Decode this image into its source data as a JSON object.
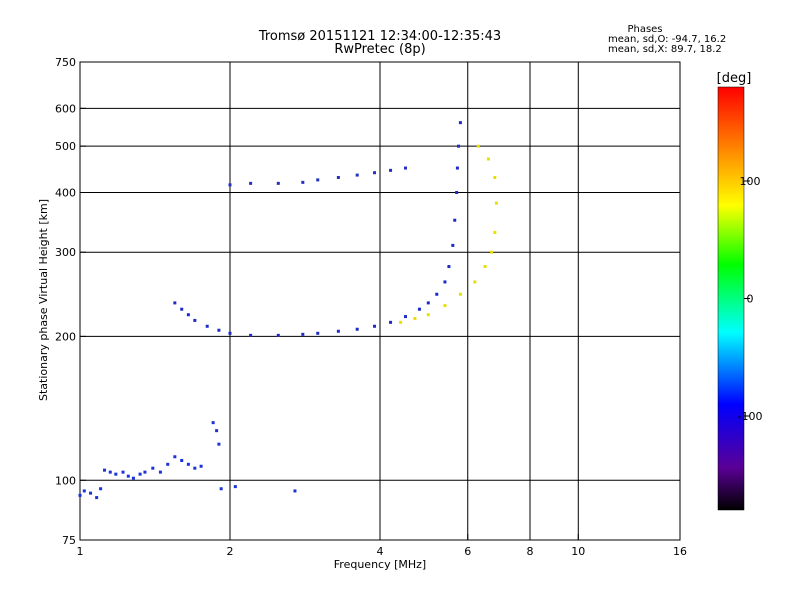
{
  "chart_data": {
    "type": "scatter",
    "title": "Tromsø 20151121 12:34:00-12:35:43",
    "subtitle": "RwPretec (8p)",
    "xlabel": "Frequency [MHz]",
    "ylabel": "Stationary phase Virtual Height [km]",
    "x_scale": "log",
    "y_scale": "log",
    "xlim": [
      1,
      16
    ],
    "ylim": [
      75,
      750
    ],
    "x_ticks": [
      1,
      2,
      4,
      6,
      8,
      10,
      16
    ],
    "y_ticks": [
      75,
      100,
      200,
      300,
      400,
      500,
      600,
      750
    ],
    "x_grid": [
      2,
      4,
      6,
      8,
      10
    ],
    "y_grid": [
      100,
      200,
      300,
      400,
      500,
      600
    ],
    "grid": true,
    "stats": {
      "header": "Phases",
      "line1": "mean, sd,O: -94.7, 16.2",
      "line2": "mean, sd,X:  89.7, 18.2"
    },
    "colorbar": {
      "label": "[deg]",
      "range": [
        -180,
        180
      ],
      "ticks": [
        100,
        0,
        -100
      ],
      "colormap": "rainbow"
    },
    "series_description_values": {
      "lower_layer_points": [
        [
          1.0,
          93
        ],
        [
          1.02,
          95
        ],
        [
          1.05,
          94
        ],
        [
          1.08,
          92
        ],
        [
          1.1,
          96
        ],
        [
          1.12,
          105
        ],
        [
          1.15,
          104
        ],
        [
          1.18,
          103
        ],
        [
          1.22,
          104
        ],
        [
          1.25,
          102
        ],
        [
          1.28,
          101
        ],
        [
          1.32,
          103
        ],
        [
          1.35,
          104
        ],
        [
          1.4,
          106
        ],
        [
          1.45,
          104
        ],
        [
          1.5,
          108
        ],
        [
          1.55,
          112
        ],
        [
          1.6,
          110
        ],
        [
          1.65,
          108
        ],
        [
          1.7,
          106
        ],
        [
          1.75,
          107
        ],
        [
          1.85,
          132
        ],
        [
          1.88,
          127
        ],
        [
          1.9,
          119
        ],
        [
          1.92,
          96
        ],
        [
          2.05,
          97
        ],
        [
          2.7,
          95
        ]
      ],
      "f_layer_o_points": [
        [
          1.55,
          235
        ],
        [
          1.6,
          228
        ],
        [
          1.65,
          222
        ],
        [
          1.7,
          216
        ],
        [
          1.8,
          210
        ],
        [
          1.9,
          206
        ],
        [
          2.0,
          203
        ],
        [
          2.2,
          201
        ],
        [
          2.5,
          201
        ],
        [
          2.8,
          202
        ],
        [
          3.0,
          203
        ],
        [
          3.3,
          205
        ],
        [
          3.6,
          207
        ],
        [
          3.9,
          210
        ],
        [
          4.2,
          214
        ],
        [
          4.5,
          220
        ],
        [
          4.8,
          228
        ],
        [
          5.0,
          235
        ],
        [
          5.2,
          245
        ],
        [
          5.4,
          260
        ],
        [
          5.5,
          280
        ],
        [
          5.6,
          310
        ],
        [
          5.65,
          350
        ],
        [
          5.7,
          400
        ],
        [
          5.72,
          450
        ],
        [
          5.75,
          500
        ],
        [
          5.8,
          560
        ]
      ],
      "f_layer_x_points": [
        [
          4.4,
          214
        ],
        [
          4.7,
          218
        ],
        [
          5.0,
          222
        ],
        [
          5.4,
          232
        ],
        [
          5.8,
          245
        ],
        [
          6.2,
          260
        ],
        [
          6.5,
          280
        ],
        [
          6.7,
          300
        ],
        [
          6.8,
          330
        ],
        [
          6.85,
          380
        ],
        [
          6.8,
          430
        ],
        [
          6.6,
          470
        ],
        [
          6.3,
          500
        ]
      ],
      "upper_trace_points": [
        [
          2.0,
          415
        ],
        [
          2.2,
          418
        ],
        [
          2.5,
          418
        ],
        [
          2.8,
          420
        ],
        [
          3.0,
          425
        ],
        [
          3.3,
          430
        ],
        [
          3.6,
          435
        ],
        [
          3.9,
          440
        ],
        [
          4.2,
          445
        ],
        [
          4.5,
          450
        ]
      ],
      "o_phase_deg": -94.7,
      "x_phase_deg": 89.7
    }
  }
}
